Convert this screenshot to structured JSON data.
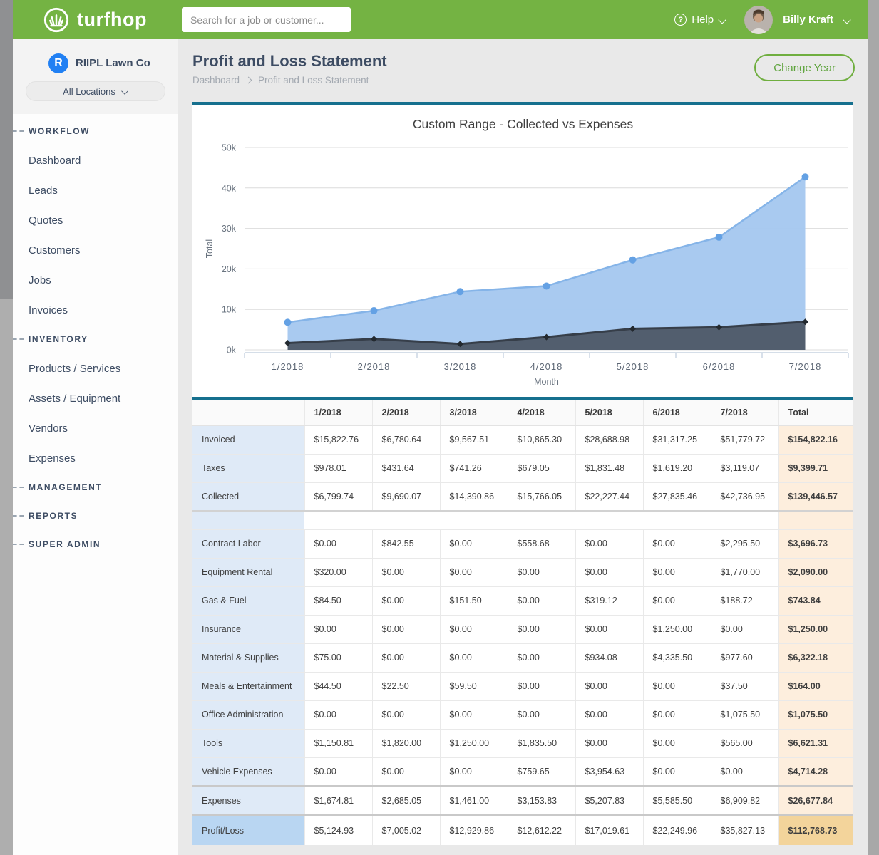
{
  "header": {
    "brand": "turfhop",
    "search_placeholder": "Search for a job or customer...",
    "help_label": "Help",
    "user_name": "Billy Kraft"
  },
  "sidebar": {
    "company_name": "RIIPL Lawn Co",
    "company_initial": "R",
    "locations_label": "All Locations",
    "sections": [
      {
        "label": "WORKFLOW",
        "items": [
          "Dashboard",
          "Leads",
          "Quotes",
          "Customers",
          "Jobs",
          "Invoices"
        ]
      },
      {
        "label": "INVENTORY",
        "items": [
          "Products / Services",
          "Assets / Equipment",
          "Vendors",
          "Expenses"
        ]
      },
      {
        "label": "MANAGEMENT",
        "items": []
      },
      {
        "label": "REPORTS",
        "items": []
      },
      {
        "label": "SUPER ADMIN",
        "items": []
      }
    ]
  },
  "page": {
    "title": "Profit and Loss Statement",
    "breadcrumb": {
      "0": "Dashboard",
      "1": "Profit and Loss Statement"
    },
    "change_year_label": "Change Year"
  },
  "chart_data": {
    "type": "area",
    "title": "Custom Range - Collected vs Expenses",
    "xlabel": "Month",
    "ylabel": "Total",
    "categories": [
      "1/2018",
      "2/2018",
      "3/2018",
      "4/2018",
      "5/2018",
      "6/2018",
      "7/2018"
    ],
    "series": [
      {
        "name": "Collected",
        "values": [
          6799.74,
          9690.07,
          14390.86,
          15766.05,
          22227.44,
          27835.46,
          42736.95
        ],
        "line": "#85b4e8",
        "fill": "#a6c8ef",
        "marker": "circle",
        "marker_color": "#64a1e4"
      },
      {
        "name": "Expenses",
        "values": [
          1674.81,
          2685.05,
          1461.0,
          3153.83,
          5207.83,
          5585.5,
          6909.82
        ],
        "line": "#363e49",
        "fill": "#4e5a68",
        "marker": "diamond",
        "marker_color": "#23292f"
      }
    ],
    "ylim": [
      0,
      50000
    ],
    "yticks": [
      "0k",
      "10k",
      "20k",
      "30k",
      "40k",
      "50k"
    ],
    "grid": true,
    "legend_position": "none"
  },
  "table": {
    "columns": [
      "",
      "1/2018",
      "2/2018",
      "3/2018",
      "4/2018",
      "5/2018",
      "6/2018",
      "7/2018",
      "Total"
    ],
    "income_rows": [
      {
        "label": "Invoiced",
        "values": [
          "$15,822.76",
          "$6,780.64",
          "$9,567.51",
          "$10,865.30",
          "$28,688.98",
          "$31,317.25",
          "$51,779.72"
        ],
        "total": "$154,822.16"
      },
      {
        "label": "Taxes",
        "values": [
          "$978.01",
          "$431.64",
          "$741.26",
          "$679.05",
          "$1,831.48",
          "$1,619.20",
          "$3,119.07"
        ],
        "total": "$9,399.71"
      },
      {
        "label": "Collected",
        "values": [
          "$6,799.74",
          "$9,690.07",
          "$14,390.86",
          "$15,766.05",
          "$22,227.44",
          "$27,835.46",
          "$42,736.95"
        ],
        "total": "$139,446.57"
      }
    ],
    "expense_rows": [
      {
        "label": "Contract Labor",
        "values": [
          "$0.00",
          "$842.55",
          "$0.00",
          "$558.68",
          "$0.00",
          "$0.00",
          "$2,295.50"
        ],
        "total": "$3,696.73"
      },
      {
        "label": "Equipment Rental",
        "values": [
          "$320.00",
          "$0.00",
          "$0.00",
          "$0.00",
          "$0.00",
          "$0.00",
          "$1,770.00"
        ],
        "total": "$2,090.00"
      },
      {
        "label": "Gas & Fuel",
        "values": [
          "$84.50",
          "$0.00",
          "$151.50",
          "$0.00",
          "$319.12",
          "$0.00",
          "$188.72"
        ],
        "total": "$743.84"
      },
      {
        "label": "Insurance",
        "values": [
          "$0.00",
          "$0.00",
          "$0.00",
          "$0.00",
          "$0.00",
          "$1,250.00",
          "$0.00"
        ],
        "total": "$1,250.00"
      },
      {
        "label": "Material & Supplies",
        "values": [
          "$75.00",
          "$0.00",
          "$0.00",
          "$0.00",
          "$934.08",
          "$4,335.50",
          "$977.60"
        ],
        "total": "$6,322.18"
      },
      {
        "label": "Meals & Entertainment",
        "values": [
          "$44.50",
          "$22.50",
          "$59.50",
          "$0.00",
          "$0.00",
          "$0.00",
          "$37.50"
        ],
        "total": "$164.00"
      },
      {
        "label": "Office Administration",
        "values": [
          "$0.00",
          "$0.00",
          "$0.00",
          "$0.00",
          "$0.00",
          "$0.00",
          "$1,075.50"
        ],
        "total": "$1,075.50"
      },
      {
        "label": "Tools",
        "values": [
          "$1,150.81",
          "$1,820.00",
          "$1,250.00",
          "$1,835.50",
          "$0.00",
          "$0.00",
          "$565.00"
        ],
        "total": "$6,621.31"
      },
      {
        "label": "Vehicle Expenses",
        "values": [
          "$0.00",
          "$0.00",
          "$0.00",
          "$759.65",
          "$3,954.63",
          "$0.00",
          "$0.00"
        ],
        "total": "$4,714.28"
      }
    ],
    "summary_rows": [
      {
        "label": "Expenses",
        "values": [
          "$1,674.81",
          "$2,685.05",
          "$1,461.00",
          "$3,153.83",
          "$5,207.83",
          "$5,585.50",
          "$6,909.82"
        ],
        "total": "$26,677.84"
      },
      {
        "label": "Profit/Loss",
        "values": [
          "$5,124.93",
          "$7,005.02",
          "$12,929.86",
          "$12,612.22",
          "$17,019.61",
          "$22,249.96",
          "$35,827.13"
        ],
        "total": "$112,768.73"
      }
    ]
  },
  "colors": {
    "brand_green": "#74b343",
    "teal_bar": "#16708e",
    "navy_text": "#3d4c63",
    "company_avatar_blue": "#2180f3",
    "label_column_bg": "#dfeaf7",
    "profit_label_bg": "#b9d6f2",
    "total_column_bg": "#fdeedd",
    "profit_total_bg": "#f3d49b"
  }
}
